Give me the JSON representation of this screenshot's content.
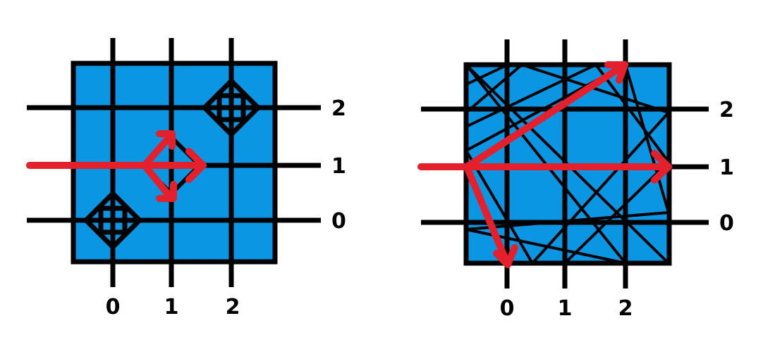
{
  "colors": {
    "fill": "#0B96E4",
    "line": "#000000",
    "arrow": "#E4202C",
    "background": "#FFFFFF"
  },
  "left_diagram": {
    "x_labels": [
      "0",
      "1",
      "2"
    ],
    "y_labels": [
      "2",
      "1",
      "0"
    ]
  },
  "right_diagram": {
    "x_labels": [
      "0",
      "1",
      "2"
    ],
    "y_labels": [
      "2",
      "1",
      "0"
    ]
  }
}
